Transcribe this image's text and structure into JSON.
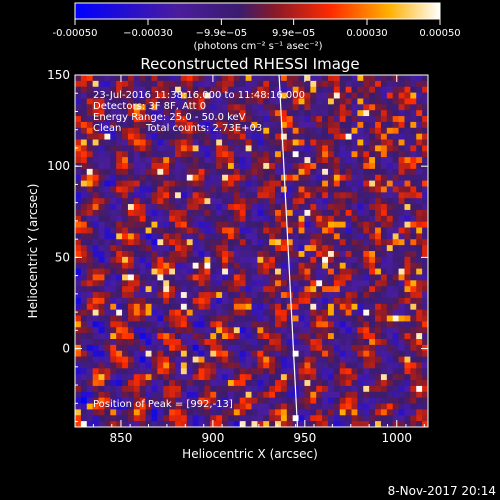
{
  "chart_data": {
    "type": "heatmap",
    "title": "Reconstructed RHESSI Image",
    "xlabel": "Heliocentric X (arcsec)",
    "ylabel": "Heliocentric Y (arcsec)",
    "xlim": [
      825,
      1017
    ],
    "ylim": [
      -43,
      150
    ],
    "xticks": [
      850,
      900,
      950,
      1000
    ],
    "yticks": [
      0,
      50,
      100,
      150
    ],
    "colorbar": {
      "min": -0.0005,
      "max": 0.0005,
      "ticks": [
        -0.0005,
        -0.0003,
        -9.9e-05,
        9.9e-05,
        0.0003,
        0.0005
      ],
      "tick_labels": [
        "-0.00050",
        "−0.00030",
        "−9.9e−05",
        "9.9e−05",
        "0.00030",
        "0.00050"
      ],
      "unit_label": "(photons cm⁻² s⁻¹ asec⁻²)",
      "colormap": [
        "#0000ff",
        "#4a1d9e",
        "#3a1c6e",
        "#8a1a28",
        "#ff2a00",
        "#ffb000",
        "#ffffff"
      ]
    },
    "limb_line": {
      "x": [
        936,
        946
      ],
      "y": [
        150,
        -43
      ]
    },
    "peak": {
      "x": 992,
      "y": -13
    },
    "annotations": [
      "23-Jul-2016 11:38:16.000 to 11:48:16.000",
      "Detectors: 3F 8F, Att 0",
      "Energy Range: 25.0 - 50.0 keV",
      "Clean",
      "Total counts: 2.73E+03",
      "Position of Peak = [992,-13]"
    ]
  },
  "footer": {
    "date": "8-Nov-2017 20:14"
  }
}
